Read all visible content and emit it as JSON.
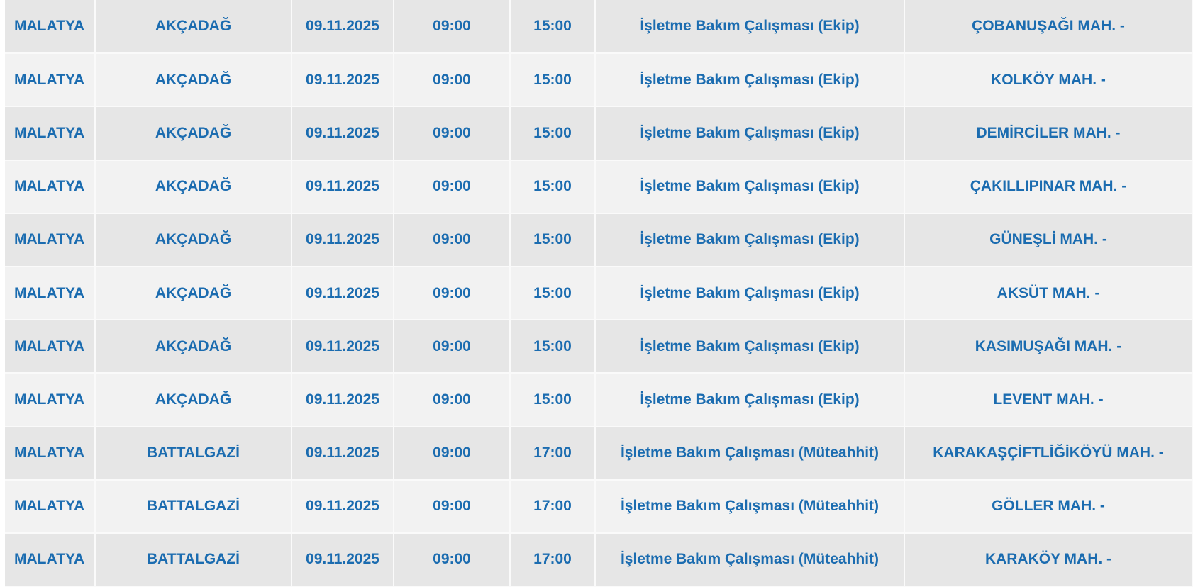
{
  "rows": [
    [
      "MALATYA",
      "AKÇADAĞ",
      "09.11.2025",
      "09:00",
      "15:00",
      "İşletme Bakım Çalışması (Ekip)",
      "ÇOBANUŞAĞI MAH. -"
    ],
    [
      "MALATYA",
      "AKÇADAĞ",
      "09.11.2025",
      "09:00",
      "15:00",
      "İşletme Bakım Çalışması (Ekip)",
      "KOLKÖY MAH. -"
    ],
    [
      "MALATYA",
      "AKÇADAĞ",
      "09.11.2025",
      "09:00",
      "15:00",
      "İşletme Bakım Çalışması (Ekip)",
      "DEMİRCİLER MAH. -"
    ],
    [
      "MALATYA",
      "AKÇADAĞ",
      "09.11.2025",
      "09:00",
      "15:00",
      "İşletme Bakım Çalışması (Ekip)",
      "ÇAKILLIPINAR MAH. -"
    ],
    [
      "MALATYA",
      "AKÇADAĞ",
      "09.11.2025",
      "09:00",
      "15:00",
      "İşletme Bakım Çalışması (Ekip)",
      "GÜNEŞLİ MAH. -"
    ],
    [
      "MALATYA",
      "AKÇADAĞ",
      "09.11.2025",
      "09:00",
      "15:00",
      "İşletme Bakım Çalışması (Ekip)",
      "AKSÜT MAH. -"
    ],
    [
      "MALATYA",
      "AKÇADAĞ",
      "09.11.2025",
      "09:00",
      "15:00",
      "İşletme Bakım Çalışması (Ekip)",
      "KASIMUŞAĞI MAH. -"
    ],
    [
      "MALATYA",
      "AKÇADAĞ",
      "09.11.2025",
      "09:00",
      "15:00",
      "İşletme Bakım Çalışması (Ekip)",
      "LEVENT MAH. -"
    ],
    [
      "MALATYA",
      "BATTALGAZİ",
      "09.11.2025",
      "09:00",
      "17:00",
      "İşletme Bakım Çalışması (Müteahhit)",
      "KARAKAŞÇİFTLİĞİKÖYÜ MAH. -"
    ],
    [
      "MALATYA",
      "BATTALGAZİ",
      "09.11.2025",
      "09:00",
      "17:00",
      "İşletme Bakım Çalışması (Müteahhit)",
      "GÖLLER MAH. -"
    ],
    [
      "MALATYA",
      "BATTALGAZİ",
      "09.11.2025",
      "09:00",
      "17:00",
      "İşletme Bakım Çalışması (Müteahhit)",
      "KARAKÖY MAH. -"
    ]
  ],
  "colors": {
    "text": "#1b6cb0",
    "row_dark": "#e6e6e6",
    "row_light": "#f2f2f2"
  }
}
